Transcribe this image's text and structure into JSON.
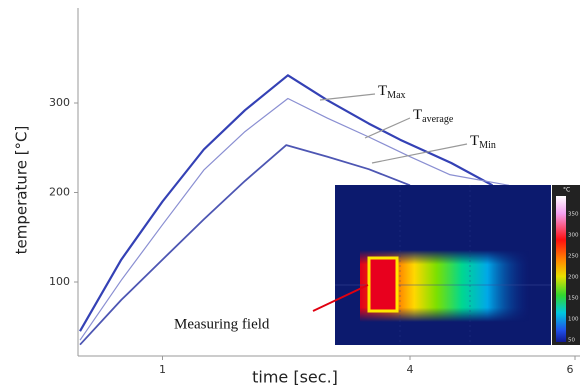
{
  "chart_data": {
    "type": "line",
    "x_label": "time [sec.]",
    "y_label": "temperature [°C]",
    "xlim": [
      0,
      6
    ],
    "ylim": [
      20,
      400
    ],
    "xticks": [
      1,
      4,
      6
    ],
    "yticks": [
      100,
      200,
      300
    ],
    "grid": false,
    "series": [
      {
        "name": {
          "main": "T",
          "sub": "Max"
        },
        "color": "#3441b5",
        "width": 2.2,
        "x": [
          0,
          0.5,
          1,
          1.5,
          2,
          2.52,
          3,
          3.5,
          3.88,
          4.5,
          5
        ],
        "values": [
          45,
          125,
          190,
          248,
          292,
          331,
          303,
          277,
          259,
          233,
          208
        ]
      },
      {
        "name": {
          "main": "T",
          "sub": "average"
        },
        "color": "#8a8fd2",
        "width": 1.2,
        "x": [
          0,
          0.5,
          1,
          1.5,
          2,
          2.52,
          3,
          3.5,
          4,
          4.48,
          5.2
        ],
        "values": [
          35,
          102,
          164,
          225,
          268,
          305,
          283,
          262,
          240,
          220,
          208
        ]
      },
      {
        "name": {
          "main": "T",
          "sub": "Min"
        },
        "color": "#4d56b3",
        "width": 1.8,
        "x": [
          0,
          0.5,
          1,
          1.5,
          2,
          2.5,
          3,
          3.5,
          4
        ],
        "values": [
          30,
          80,
          125,
          170,
          213,
          253,
          240,
          226,
          208
        ]
      }
    ],
    "inset": {
      "annotation": "Measuring field",
      "colorbar_unit": "°C",
      "colorbar_labels": [
        "350",
        "300",
        "250",
        "200",
        "150",
        "100",
        "50"
      ]
    }
  }
}
